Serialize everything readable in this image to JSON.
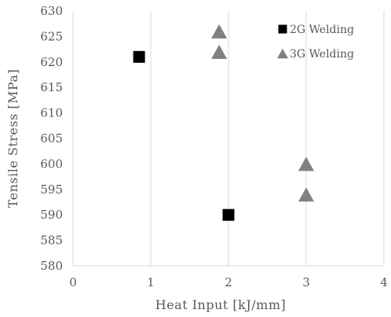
{
  "chart_data": {
    "type": "scatter",
    "xlabel": "Heat Input [kJ/mm]",
    "ylabel": "Tensile Stress [MPa]",
    "xlim": [
      0,
      4
    ],
    "ylim": [
      580,
      630
    ],
    "x_ticks": [
      "0",
      "1",
      "2",
      "3",
      "4"
    ],
    "y_ticks": [
      "580",
      "585",
      "590",
      "595",
      "600",
      "605",
      "610",
      "615",
      "620",
      "625",
      "630"
    ],
    "grid": "vertical",
    "legend_position": "top-right",
    "series": [
      {
        "name": "2G Welding",
        "marker": "square",
        "color": "#000000",
        "points": [
          [
            0.85,
            621
          ],
          [
            2.0,
            590
          ]
        ]
      },
      {
        "name": "3G Welding",
        "marker": "triangle",
        "color": "#808080",
        "points": [
          [
            1.88,
            626
          ],
          [
            1.88,
            622
          ],
          [
            3.0,
            600
          ],
          [
            3.0,
            594
          ]
        ]
      }
    ]
  }
}
